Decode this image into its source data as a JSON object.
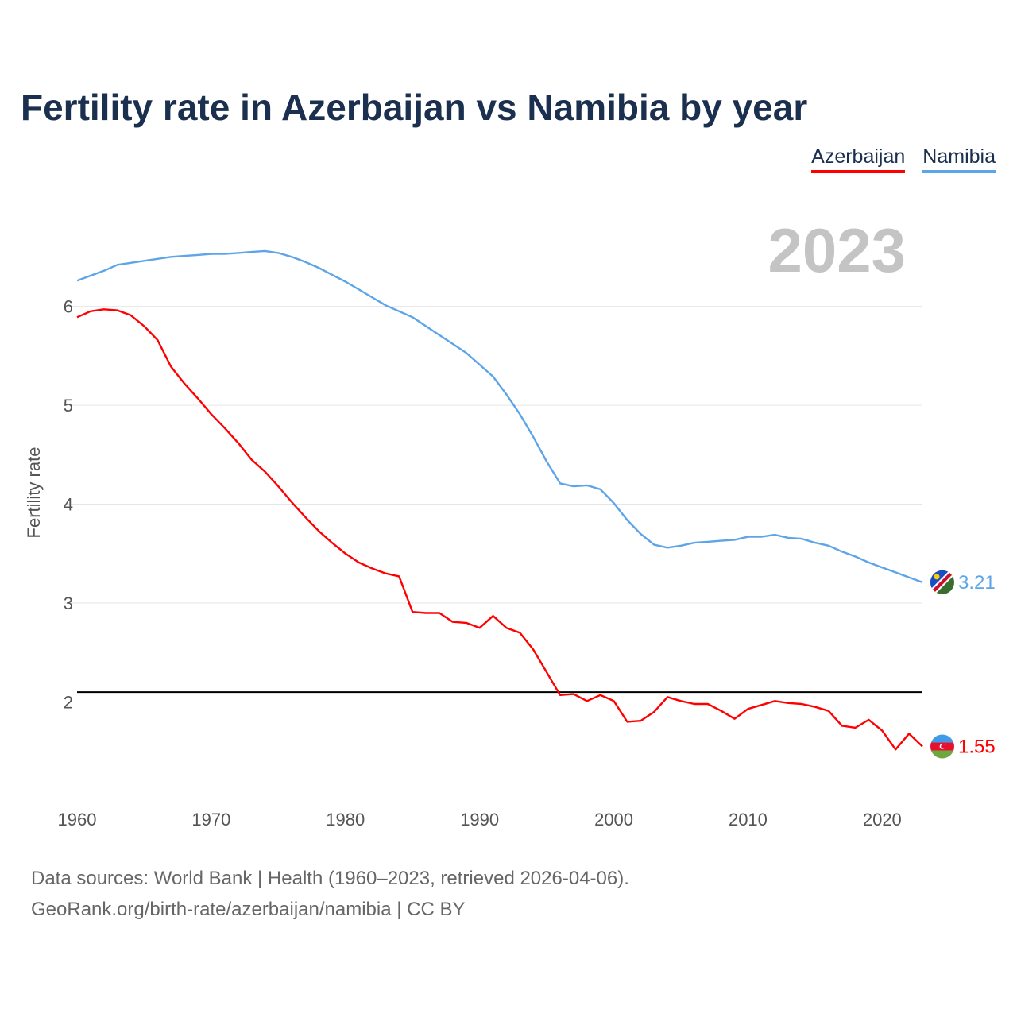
{
  "title": "Fertility rate in Azerbaijan vs Namibia by year",
  "legend": {
    "azerbaijan": "Azerbaijan",
    "namibia": "Namibia"
  },
  "source": {
    "line1": "Data sources: World Bank | Health (1960–2023, retrieved 2026-04-06).",
    "line2": "GeoRank.org/birth-rate/azerbaijan/namibia | CC BY"
  },
  "chart_data": {
    "type": "line",
    "title": "Fertility rate in Azerbaijan vs Namibia by year",
    "ylabel": "Fertility rate",
    "xlabel": "",
    "current_year_label": "2023",
    "xlim": [
      1960,
      2023
    ],
    "ylim": [
      1.0,
      6.8
    ],
    "x_ticks": [
      1960,
      1970,
      1980,
      1990,
      2000,
      2010,
      2020
    ],
    "y_ticks": [
      2,
      3,
      4,
      5,
      6
    ],
    "reference_line": 2.1,
    "x": [
      1960,
      1961,
      1962,
      1963,
      1964,
      1965,
      1966,
      1967,
      1968,
      1969,
      1970,
      1971,
      1972,
      1973,
      1974,
      1975,
      1976,
      1977,
      1978,
      1979,
      1980,
      1981,
      1982,
      1983,
      1984,
      1985,
      1986,
      1987,
      1988,
      1989,
      1990,
      1991,
      1992,
      1993,
      1994,
      1995,
      1996,
      1997,
      1998,
      1999,
      2000,
      2001,
      2002,
      2003,
      2004,
      2005,
      2006,
      2007,
      2008,
      2009,
      2010,
      2011,
      2012,
      2013,
      2014,
      2015,
      2016,
      2017,
      2018,
      2019,
      2020,
      2021,
      2022,
      2023
    ],
    "series": [
      {
        "name": "Azerbaijan",
        "color": "#ff0000",
        "end_label": "1.55",
        "values": [
          5.89,
          5.95,
          5.97,
          5.96,
          5.91,
          5.8,
          5.66,
          5.39,
          5.22,
          5.07,
          4.91,
          4.77,
          4.62,
          4.45,
          4.33,
          4.18,
          4.02,
          3.87,
          3.73,
          3.61,
          3.5,
          3.41,
          3.35,
          3.3,
          3.27,
          2.91,
          2.9,
          2.9,
          2.81,
          2.8,
          2.75,
          2.87,
          2.75,
          2.7,
          2.53,
          2.3,
          2.07,
          2.08,
          2.01,
          2.07,
          2.01,
          1.8,
          1.81,
          1.9,
          2.05,
          2.01,
          1.98,
          1.98,
          1.91,
          1.83,
          1.93,
          1.97,
          2.01,
          1.99,
          1.98,
          1.95,
          1.91,
          1.76,
          1.74,
          1.82,
          1.71,
          1.52,
          1.68,
          1.55
        ]
      },
      {
        "name": "Namibia",
        "color": "#5da5e8",
        "end_label": "3.21",
        "values": [
          6.26,
          6.31,
          6.36,
          6.42,
          6.44,
          6.46,
          6.48,
          6.5,
          6.51,
          6.52,
          6.53,
          6.53,
          6.54,
          6.55,
          6.56,
          6.54,
          6.5,
          6.45,
          6.39,
          6.32,
          6.25,
          6.17,
          6.09,
          6.01,
          5.95,
          5.89,
          5.8,
          5.71,
          5.62,
          5.53,
          5.41,
          5.29,
          5.11,
          4.91,
          4.68,
          4.43,
          4.21,
          4.18,
          4.19,
          4.15,
          4.01,
          3.84,
          3.7,
          3.59,
          3.56,
          3.58,
          3.61,
          3.62,
          3.63,
          3.64,
          3.67,
          3.67,
          3.69,
          3.66,
          3.65,
          3.61,
          3.58,
          3.52,
          3.47,
          3.41,
          3.36,
          3.31,
          3.26,
          3.21
        ]
      }
    ]
  }
}
